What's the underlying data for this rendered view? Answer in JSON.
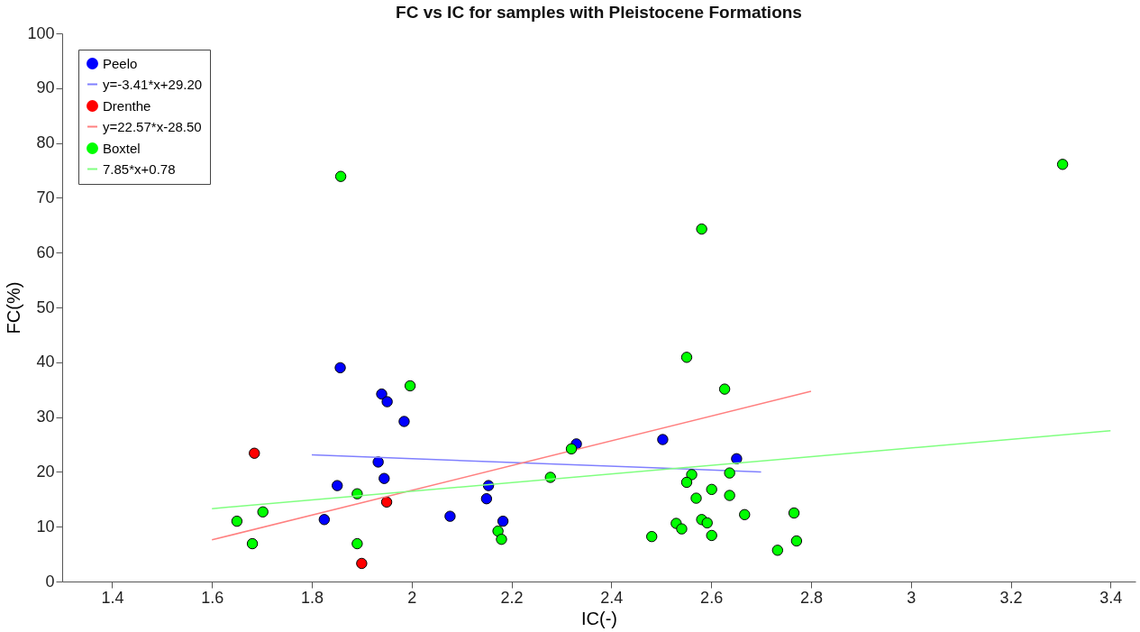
{
  "chart_data": {
    "type": "scatter",
    "title": "FC vs IC for samples with Pleistocene Formations",
    "xlabel": "IC(-)",
    "ylabel": "FC(%)",
    "xlim": [
      1.3,
      3.45
    ],
    "xticks": [
      1.4,
      1.6,
      1.8,
      2,
      2.2,
      2.4,
      2.6,
      2.8,
      3,
      3.2,
      3.4
    ],
    "ylim": [
      0,
      100
    ],
    "yticks": [
      0,
      10,
      20,
      30,
      40,
      50,
      60,
      70,
      80,
      90,
      100
    ],
    "grid": false,
    "legend": "top left",
    "series": [
      {
        "name": "Peelo",
        "marker": "circle",
        "color": "#0000ff",
        "x": [
          1.857,
          1.94,
          1.951,
          1.985,
          1.933,
          1.851,
          1.945,
          1.825,
          2.077,
          2.154,
          2.15,
          2.183,
          2.33,
          2.503,
          2.651
        ],
        "values": [
          39.0,
          34.2,
          32.8,
          29.2,
          21.8,
          17.5,
          18.8,
          11.3,
          11.9,
          17.5,
          15.1,
          11.0,
          25.1,
          25.9,
          22.4
        ]
      },
      {
        "name": "y=-3.41*x+29.20",
        "type": "line",
        "marker": "none",
        "color": "#8080ff",
        "x": [
          1.8,
          2.7
        ],
        "values": [
          23.1,
          20.0
        ]
      },
      {
        "name": "Drenthe",
        "marker": "circle",
        "color": "#ff0000",
        "x": [
          1.685,
          1.95,
          1.9
        ],
        "values": [
          23.4,
          14.5,
          3.3
        ]
      },
      {
        "name": "y=22.57*x-28.50",
        "type": "line",
        "marker": "none",
        "color": "#ff8080",
        "x": [
          1.6,
          2.8
        ],
        "values": [
          7.6,
          34.7
        ]
      },
      {
        "name": "Boxtel",
        "marker": "circle",
        "color": "#00ff00",
        "x": [
          1.858,
          1.997,
          1.65,
          1.702,
          1.681,
          1.891,
          1.891,
          2.173,
          2.18,
          2.278,
          2.32,
          3.304,
          2.581,
          2.551,
          2.627,
          2.561,
          2.551,
          2.637,
          2.601,
          2.637,
          2.57,
          2.667,
          2.766,
          2.53,
          2.541,
          2.581,
          2.592,
          2.481,
          2.601,
          2.771,
          2.733
        ],
        "values": [
          73.9,
          35.7,
          11.0,
          12.7,
          6.9,
          16.0,
          6.9,
          9.2,
          7.7,
          19.0,
          24.2,
          76.1,
          64.3,
          40.9,
          35.1,
          19.5,
          18.1,
          19.8,
          16.8,
          15.7,
          15.2,
          12.2,
          12.5,
          10.6,
          9.6,
          11.3,
          10.7,
          8.2,
          8.4,
          7.4,
          5.7
        ]
      },
      {
        "name": "7.85*x+0.78",
        "type": "line",
        "marker": "none",
        "color": "#80ff80",
        "x": [
          1.6,
          3.4
        ],
        "values": [
          13.3,
          27.5
        ]
      }
    ]
  }
}
